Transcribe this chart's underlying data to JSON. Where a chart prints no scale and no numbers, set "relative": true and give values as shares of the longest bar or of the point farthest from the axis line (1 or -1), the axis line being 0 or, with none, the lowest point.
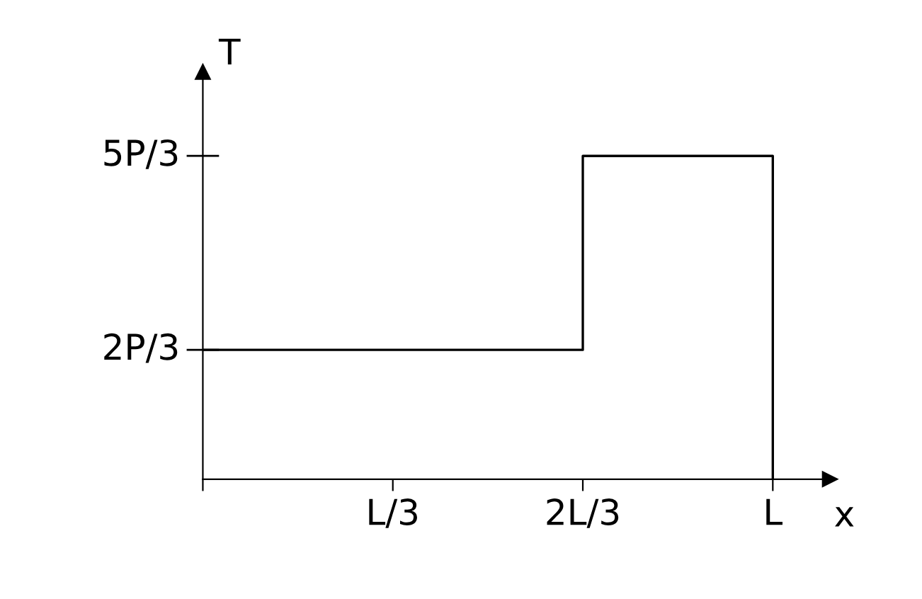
{
  "chart_data": {
    "type": "step",
    "xlabel": "x",
    "ylabel": "T",
    "relative": true,
    "categories": [
      null,
      "L/3",
      "2L/3",
      "L"
    ],
    "series": [
      {
        "color": "#000000",
        "values": [
          0.4,
          0.4,
          1,
          0
        ]
      }
    ],
    "annotations": [
      "2P/3",
      "5P/3"
    ],
    "grid": false,
    "legend": false
  }
}
